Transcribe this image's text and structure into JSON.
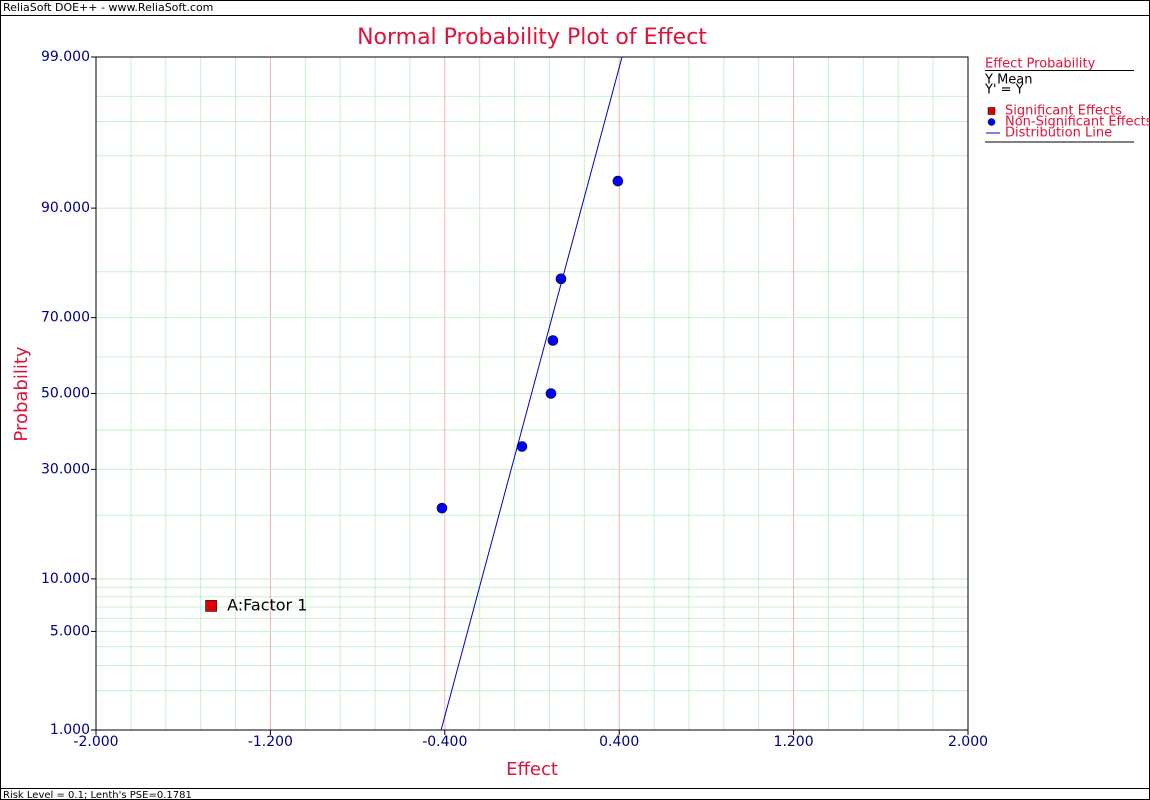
{
  "header": "ReliaSoft DOE++ - www.ReliaSoft.com",
  "footer": "Risk Level = 0.1; Lenth's PSE=0.1781",
  "chart_data": {
    "type": "scatter",
    "title": "Normal Probability Plot of Effect",
    "x_label": "Effect",
    "y_label": "Probability",
    "yscale": "normal-probability",
    "grid": true,
    "legend_title": "Effect Probability",
    "legend_lines": [
      "Y Mean",
      "Y' = Y"
    ],
    "xlim": [
      -2,
      2
    ],
    "ylim": [
      1,
      99
    ],
    "xticks": [
      {
        "value": -2,
        "label": "-2.000"
      },
      {
        "value": -1.2,
        "label": "-1.200"
      },
      {
        "value": -0.4,
        "label": "-0.400"
      },
      {
        "value": 0.4,
        "label": "0.400"
      },
      {
        "value": 1.2,
        "label": "1.200"
      },
      {
        "value": 2,
        "label": "2.000"
      }
    ],
    "yticks": [
      {
        "value": 1,
        "label": "1.000"
      },
      {
        "value": 5,
        "label": "5.000"
      },
      {
        "value": 10,
        "label": "10.000"
      },
      {
        "value": 30,
        "label": "30.000"
      },
      {
        "value": 50,
        "label": "50.000"
      },
      {
        "value": 70,
        "label": "70.000"
      },
      {
        "value": 90,
        "label": "90.000"
      },
      {
        "value": 99,
        "label": "99.000"
      }
    ],
    "xminor": [
      -1.84,
      -1.68,
      -1.52,
      -1.36,
      -1.04,
      -0.88,
      -0.72,
      -0.56,
      -0.24,
      -0.08,
      0.08,
      0.24,
      0.56,
      0.72,
      0.88,
      1.04,
      1.36,
      1.52,
      1.68,
      1.84
    ],
    "yminor": [
      2,
      3,
      4,
      6,
      7,
      8,
      9,
      20,
      40,
      60,
      80,
      95,
      97,
      98
    ],
    "series": [
      {
        "name": "Significant Effects",
        "color": "#e00000",
        "marker": "square",
        "x": [
          -1.472
        ],
        "values": [
          7.1
        ],
        "point_labels": [
          "A:Factor 1"
        ]
      },
      {
        "name": "Non-Significant Effects",
        "color": "#0000ff",
        "marker": "circle",
        "x": [
          -0.413,
          -0.046,
          0.087,
          0.096,
          0.133,
          0.394
        ],
        "values": [
          21.4,
          35.7,
          50,
          64.3,
          78.6,
          92.9
        ]
      },
      {
        "name": "Distribution Line",
        "color": "#0000c0",
        "marker": "line",
        "x": [
          -0.417,
          0.413
        ],
        "values": [
          1,
          99
        ]
      }
    ]
  }
}
